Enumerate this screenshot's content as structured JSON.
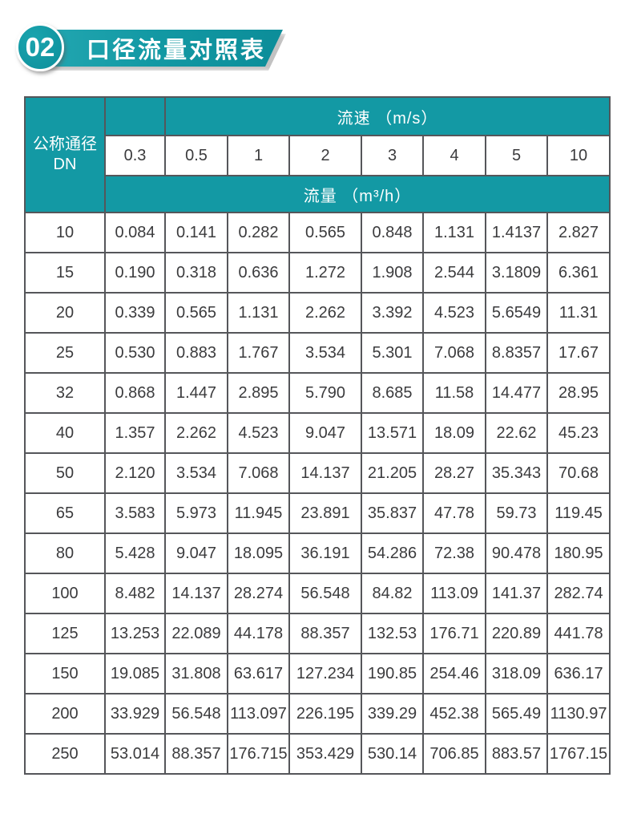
{
  "section_header": {
    "number": "02",
    "title": "口径流量对照表"
  },
  "colors": {
    "teal": "#1399a4",
    "banner_gradient_left": "#23a7b1",
    "banner_gradient_right": "#0c8d99",
    "table_border": "#55565a",
    "body_text": "#3b3b3d"
  },
  "table": {
    "corner": {
      "line1": "公称通径",
      "line2": "DN"
    },
    "velocity_header": "流速 （m/s）",
    "flow_header": "流量 （m³/h）",
    "velocities": [
      "0.3",
      "0.5",
      "1",
      "2",
      "3",
      "4",
      "5",
      "10"
    ],
    "rows": [
      {
        "dn": "10",
        "values": [
          "0.084",
          "0.141",
          "0.282",
          "0.565",
          "0.848",
          "1.131",
          "1.4137",
          "2.827"
        ]
      },
      {
        "dn": "15",
        "values": [
          "0.190",
          "0.318",
          "0.636",
          "1.272",
          "1.908",
          "2.544",
          "3.1809",
          "6.361"
        ]
      },
      {
        "dn": "20",
        "values": [
          "0.339",
          "0.565",
          "1.131",
          "2.262",
          "3.392",
          "4.523",
          "5.6549",
          "11.31"
        ]
      },
      {
        "dn": "25",
        "values": [
          "0.530",
          "0.883",
          "1.767",
          "3.534",
          "5.301",
          "7.068",
          "8.8357",
          "17.67"
        ]
      },
      {
        "dn": "32",
        "values": [
          "0.868",
          "1.447",
          "2.895",
          "5.790",
          "8.685",
          "11.58",
          "14.477",
          "28.95"
        ]
      },
      {
        "dn": "40",
        "values": [
          "1.357",
          "2.262",
          "4.523",
          "9.047",
          "13.571",
          "18.09",
          "22.62",
          "45.23"
        ]
      },
      {
        "dn": "50",
        "values": [
          "2.120",
          "3.534",
          "7.068",
          "14.137",
          "21.205",
          "28.27",
          "35.343",
          "70.68"
        ]
      },
      {
        "dn": "65",
        "values": [
          "3.583",
          "5.973",
          "11.945",
          "23.891",
          "35.837",
          "47.78",
          "59.73",
          "119.45"
        ]
      },
      {
        "dn": "80",
        "values": [
          "5.428",
          "9.047",
          "18.095",
          "36.191",
          "54.286",
          "72.38",
          "90.478",
          "180.95"
        ]
      },
      {
        "dn": "100",
        "values": [
          "8.482",
          "14.137",
          "28.274",
          "56.548",
          "84.82",
          "113.09",
          "141.37",
          "282.74"
        ]
      },
      {
        "dn": "125",
        "values": [
          "13.253",
          "22.089",
          "44.178",
          "88.357",
          "132.53",
          "176.71",
          "220.89",
          "441.78"
        ]
      },
      {
        "dn": "150",
        "values": [
          "19.085",
          "31.808",
          "63.617",
          "127.234",
          "190.85",
          "254.46",
          "318.09",
          "636.17"
        ]
      },
      {
        "dn": "200",
        "values": [
          "33.929",
          "56.548",
          "113.097",
          "226.195",
          "339.29",
          "452.38",
          "565.49",
          "1130.97"
        ]
      },
      {
        "dn": "250",
        "values": [
          "53.014",
          "88.357",
          "176.715",
          "353.429",
          "530.14",
          "706.85",
          "883.57",
          "1767.15"
        ]
      }
    ]
  }
}
